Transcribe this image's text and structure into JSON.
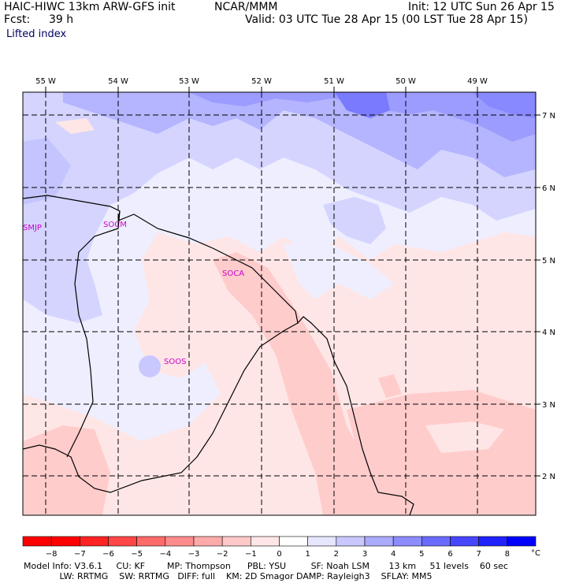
{
  "header": {
    "model": "HAIC-HIWC 13km ARW-GFS init",
    "agency": "NCAR/MMM",
    "fcst_label": "Fcst:",
    "fcst_value": "39 h",
    "init": "Init: 12 UTC Sun 26 Apr 15",
    "valid": "Valid: 03 UTC Tue 28 Apr 15 (00 LST Tue 28 Apr 15)",
    "field": "Lifted index"
  },
  "map": {
    "lon_labels": [
      "55 W",
      "54 W",
      "53 W",
      "52 W",
      "51 W",
      "50 W",
      "49 W"
    ],
    "lat_labels": [
      "7 N",
      "6 N",
      "5 N",
      "4 N",
      "3 N",
      "2 N"
    ],
    "stations": [
      "SMJP",
      "SOCM",
      "SOCA",
      "SOOS"
    ]
  },
  "colorbar": {
    "labels": [
      "−8",
      "−7",
      "−6",
      "−5",
      "−4",
      "−3",
      "−2",
      "−1",
      "0",
      "1",
      "2",
      "3",
      "4",
      "5",
      "6",
      "7",
      "8"
    ],
    "unit": "°C",
    "colors": [
      "#ff0000",
      "#ff2222",
      "#ff4646",
      "#ff6a6a",
      "#ff8c8c",
      "#ffaaaa",
      "#ffc8c8",
      "#ffe6e6",
      "#ffffff",
      "#e6e6ff",
      "#c8c8ff",
      "#aaaaff",
      "#8c8cff",
      "#6a6aff",
      "#4646ff",
      "#2222ff",
      "#0000ff"
    ]
  },
  "footer": {
    "line1": "Model Info: V3.6.1     CU: KF        MP: Thompson      PBL: YSU         SF: Noah LSM       13 km     51 levels    60 sec",
    "line2": "             LW: RRTMG    SW: RRTMG   DIFF: full    KM: 2D Smagor DAMP: Rayleigh3    SFLAY: MM5"
  }
}
